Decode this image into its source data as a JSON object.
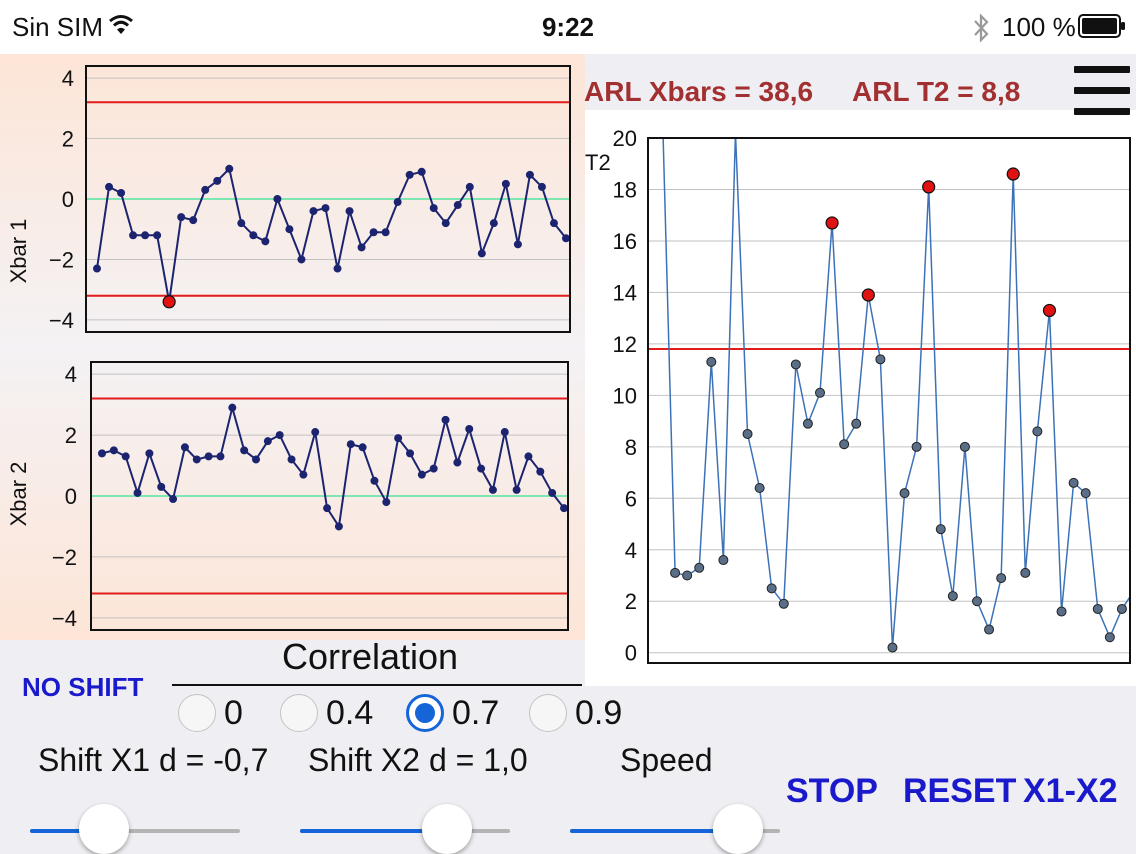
{
  "status_bar": {
    "carrier": "Sin SIM",
    "time": "9:22",
    "battery_text": "100 %",
    "icons": [
      "wifi-icon",
      "bluetooth-icon",
      "battery-icon"
    ]
  },
  "arl": {
    "xbars": "ARL Xbars = 38,6",
    "t2": "ARL T2 = 8,8"
  },
  "menu_icon": "hamburger-menu-icon",
  "controls": {
    "no_shift": "NO SHIFT",
    "correlation_title": "Correlation",
    "correlation_options": [
      "0",
      "0.4",
      "0.7",
      "0.9"
    ],
    "correlation_selected": "0.7",
    "shift_x1": "Shift X1 d = -0,7",
    "shift_x2": "Shift X2 d = 1,0",
    "speed": "Speed",
    "slider_shift_x1": 0.35,
    "slider_shift_x2": 0.7,
    "slider_speed": 0.8,
    "stop": "STOP",
    "reset": "RESET",
    "x1_x2": "X1-X2"
  },
  "colors": {
    "control_limit": "#e21b1b",
    "center_line": "#7ee6b0",
    "series_line": "#1c2470",
    "t2_line": "#3d72b8",
    "alarm_point": "#e01212",
    "accent_blue": "#1a1acc",
    "arl_text": "#a33030",
    "radio_selected": "#1565d8"
  },
  "chart_data": [
    {
      "type": "line",
      "title": "",
      "xlabel": "",
      "ylabel": "Xbar 1",
      "yticks": [
        4,
        2,
        0,
        -2,
        -4
      ],
      "ylim": [
        -4.4,
        4.4
      ],
      "ucl": 3.2,
      "lcl": -3.2,
      "center": 0,
      "grid": true,
      "values": [
        -2.3,
        0.4,
        0.2,
        -1.2,
        -1.2,
        -1.2,
        -3.4,
        -0.6,
        -0.7,
        0.3,
        0.6,
        1.0,
        -0.8,
        -1.2,
        -1.4,
        0.0,
        -1.0,
        -2.0,
        -0.4,
        -0.3,
        -2.3,
        -0.4,
        -1.6,
        -1.1,
        -1.1,
        -0.1,
        0.8,
        0.9,
        -0.3,
        -0.8,
        -0.2,
        0.4,
        -1.8,
        -0.8,
        0.5,
        -1.5,
        0.8,
        0.4,
        -0.8,
        -1.3
      ],
      "alarms": [
        6
      ]
    },
    {
      "type": "line",
      "title": "",
      "xlabel": "",
      "ylabel": "Xbar 2",
      "yticks": [
        4,
        2,
        0,
        -2,
        -4
      ],
      "ylim": [
        -4.4,
        4.4
      ],
      "ucl": 3.2,
      "lcl": -3.2,
      "center": 0,
      "grid": true,
      "values": [
        1.4,
        1.5,
        1.3,
        0.1,
        1.4,
        0.3,
        -0.1,
        1.6,
        1.2,
        1.3,
        1.3,
        2.9,
        1.5,
        1.2,
        1.8,
        2.0,
        1.2,
        0.7,
        2.1,
        -0.4,
        -1.0,
        1.7,
        1.6,
        0.5,
        -0.2,
        1.9,
        1.4,
        0.7,
        0.9,
        2.5,
        1.1,
        2.2,
        0.9,
        0.2,
        2.1,
        0.2,
        1.3,
        0.8,
        0.1,
        -0.4
      ],
      "alarms": []
    },
    {
      "type": "line",
      "title": "",
      "xlabel": "",
      "ylabel": "T2",
      "yticks": [
        20,
        18,
        16,
        14,
        12,
        10,
        8,
        6,
        4,
        2,
        0
      ],
      "ylim": [
        -0.4,
        20
      ],
      "ucl": 11.8,
      "grid": true,
      "values": [
        20.2,
        3.1,
        3.0,
        3.3,
        11.3,
        3.6,
        20.2,
        8.5,
        6.4,
        2.5,
        1.9,
        11.2,
        8.9,
        10.1,
        16.7,
        8.1,
        8.9,
        13.9,
        11.4,
        0.2,
        6.2,
        8.0,
        18.1,
        4.8,
        2.2,
        8.0,
        2.0,
        0.9,
        2.9,
        18.6,
        3.1,
        8.6,
        13.3,
        1.6,
        6.6,
        6.2,
        1.7,
        0.6,
        1.7,
        2.4
      ],
      "alarms": [
        14,
        17,
        22,
        29,
        32
      ]
    }
  ]
}
